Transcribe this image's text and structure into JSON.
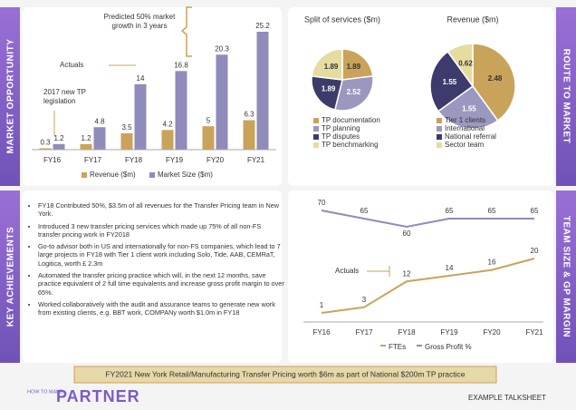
{
  "side_labels": [
    "MARKET OPPORTUNITY",
    "ROUTE TO MARKET",
    "KEY ACHIEVEMENTS",
    "TEAM SIZE & GP MARGIN"
  ],
  "chart_data": [
    {
      "type": "bar",
      "categories": [
        "FY16",
        "FY17",
        "FY18",
        "FY19",
        "FY20",
        "FY21"
      ],
      "series": [
        {
          "name": "Revenue ($m)",
          "color": "#c9a35a",
          "values": [
            0.3,
            1.2,
            3.5,
            4.2,
            5,
            6.3
          ]
        },
        {
          "name": "Market Size ($m)",
          "color": "#8f8bba",
          "values": [
            1.2,
            4.8,
            14,
            16.8,
            20.3,
            25.2
          ]
        }
      ],
      "annotations": [
        "Predicted 50% market growth in 3 years",
        "Actuals",
        "2017 new TP legislation"
      ]
    },
    {
      "type": "pie",
      "title": "Split of services ($m)",
      "categories": [
        "TP documentation",
        "TP planning",
        "TP disputes",
        "TP benchmarking"
      ],
      "values": [
        1.89,
        2.52,
        1.89,
        1.89
      ],
      "colors": [
        "#c9a35a",
        "#9b98c0",
        "#3d3b6b",
        "#e6dca0"
      ]
    },
    {
      "type": "pie",
      "title": "Revenue ($m)",
      "categories": [
        "Tier 1 clients",
        "International",
        "National referral",
        "Sector team"
      ],
      "values": [
        2.48,
        1.55,
        1.55,
        0.62
      ],
      "colors": [
        "#c9a35a",
        "#9b98c0",
        "#3d3b6b",
        "#e6dca0"
      ]
    },
    {
      "type": "line",
      "categories": [
        "FY16",
        "FY17",
        "FY18",
        "FY19",
        "FY20",
        "FY21"
      ],
      "series": [
        {
          "name": "FTEs",
          "color": "#c9a35a",
          "values": [
            1,
            3,
            12,
            14,
            16,
            20
          ]
        },
        {
          "name": "Gross Profit %",
          "color": "#8f8bba",
          "axis": "y2",
          "values": [
            70,
            65,
            60,
            65,
            65,
            65
          ]
        }
      ],
      "annotations": [
        "Actuals"
      ]
    }
  ],
  "achievements": [
    "FY18 Contributed 50%, $3.5m of all revenues for the Transfer Pricing team in New York.",
    "Introduced 3 new transfer pricing services which made up 75% of all non-FS transfer pricing work in FY2018",
    "Go-to advisor both in US and internationally for non-FS companies, which lead to 7 large projects in FY18 with Tier 1 client work including Solo, Tide, AAB, CEMRaT, Logitica, worth £ 2.3m",
    "Automated the transfer pricing practice which will, in the next 12 months, save practice equivalent of 2 full time equivalents and increase gross profit margin to over 65%.",
    "Worked collaboratively with the audit and assurance teams to generate new work from existing clients, e.g. BBT work, COMPANy worth $1.0m in FY18"
  ],
  "banner": "FY2021 New York Retail/Manufacturing Transfer Pricing worth $6m as part of National $200m TP practice",
  "footer": {
    "logo_small": "HOW TO MAKE",
    "logo": "PARTNER",
    "label": "EXAMPLE TALKSHEET"
  }
}
